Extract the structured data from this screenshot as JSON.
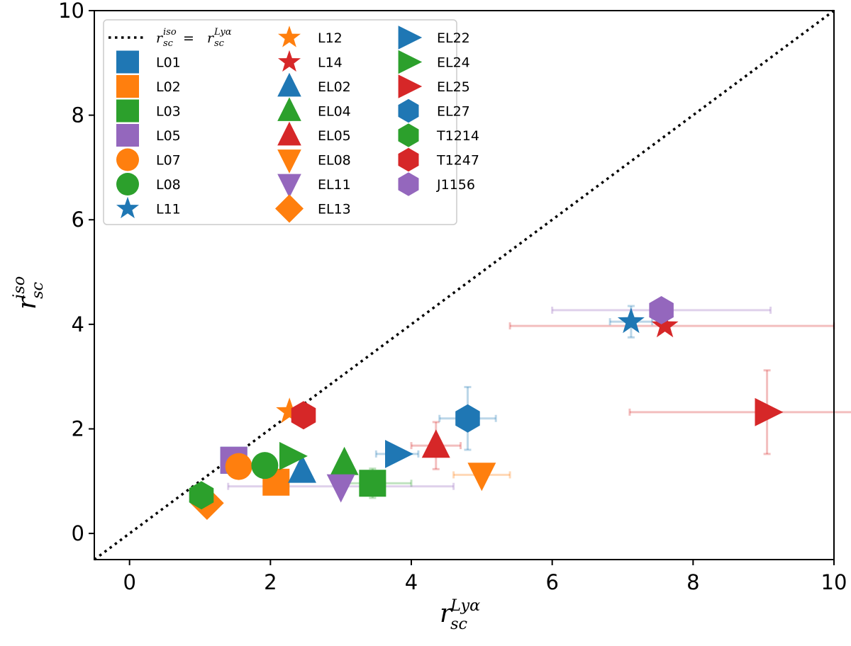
{
  "chart_data": {
    "type": "scatter",
    "xlim": [
      -0.5,
      10
    ],
    "ylim": [
      -0.5,
      10
    ],
    "xticks": [
      0,
      2,
      4,
      6,
      8,
      10
    ],
    "yticks": [
      0,
      2,
      4,
      6,
      8,
      10
    ],
    "xlabel": {
      "base": "r",
      "sub": "sc",
      "sup": "Lyα"
    },
    "ylabel": {
      "base": "r",
      "sub": "sc",
      "sup": "iso"
    },
    "reference_line": {
      "name": "r_sc^iso = r_sc^Lyα",
      "style": "dotted",
      "from": [
        -0.5,
        -0.5
      ],
      "to": [
        10,
        10
      ],
      "legend": {
        "lhs": "r",
        "lhs_sub": "sc",
        "lhs_sup": "iso",
        "eq": " = ",
        "rhs": "r",
        "rhs_sub": "sc",
        "rhs_sup": "Lyα"
      }
    },
    "legend_position": "top-left",
    "series": [
      {
        "name": "L01",
        "marker": "square",
        "color": "#1f77b4",
        "x": 1.48,
        "y": 1.4,
        "xerr": 0,
        "yerr": 0
      },
      {
        "name": "L02",
        "marker": "square",
        "color": "#ff7f0e",
        "x": 2.08,
        "y": 0.98,
        "xerr": 0,
        "yerr": 0
      },
      {
        "name": "L03",
        "marker": "square",
        "color": "#2ca02c",
        "x": 3.45,
        "y": 0.96,
        "xerr": 0.55,
        "yerr": 0.28
      },
      {
        "name": "L05",
        "marker": "square",
        "color": "#9467bd",
        "x": 1.48,
        "y": 1.4,
        "xerr": 0,
        "yerr": 0
      },
      {
        "name": "L07",
        "marker": "circle",
        "color": "#ff7f0e",
        "x": 1.55,
        "y": 1.28,
        "xerr": 0,
        "yerr": 0
      },
      {
        "name": "L08",
        "marker": "circle",
        "color": "#2ca02c",
        "x": 1.92,
        "y": 1.3,
        "xerr": 0,
        "yerr": 0
      },
      {
        "name": "L11",
        "marker": "star",
        "color": "#1f77b4",
        "x": 7.12,
        "y": 4.05,
        "xerr": 0.3,
        "yerr": 0.3
      },
      {
        "name": "L12",
        "marker": "star",
        "color": "#ff7f0e",
        "x": 2.27,
        "y": 2.33,
        "xerr": 0,
        "yerr": 0
      },
      {
        "name": "L14",
        "marker": "star",
        "color": "#d62728",
        "x": 7.6,
        "y": 3.97,
        "xerr": 0,
        "yerr": 0
      },
      {
        "name": "EL02",
        "marker": "triangle-up",
        "color": "#1f77b4",
        "x": 2.45,
        "y": 1.2,
        "xerr": 0,
        "yerr": 0
      },
      {
        "name": "EL04",
        "marker": "triangle-up",
        "color": "#2ca02c",
        "x": 3.05,
        "y": 1.35,
        "xerr": 0,
        "yerr": 0
      },
      {
        "name": "EL05",
        "marker": "triangle-up",
        "color": "#d62728",
        "x": 4.35,
        "y": 1.68,
        "xerr": 0.35,
        "yerr": 0.45
      },
      {
        "name": "EL08",
        "marker": "triangle-down",
        "color": "#ff7f0e",
        "x": 5.0,
        "y": 1.12,
        "xerr": 0.4,
        "yerr": 0
      },
      {
        "name": "EL11",
        "marker": "triangle-down",
        "color": "#9467bd",
        "x": 3.0,
        "y": 0.9,
        "xerr": 1.6,
        "yerr": 0
      },
      {
        "name": "EL13",
        "marker": "diamond",
        "color": "#ff7f0e",
        "x": 1.1,
        "y": 0.58,
        "xerr": 0,
        "yerr": 0
      },
      {
        "name": "EL22",
        "marker": "triangle-right",
        "color": "#1f77b4",
        "x": 3.8,
        "y": 1.52,
        "xerr": 0.3,
        "yerr": 0
      },
      {
        "name": "EL24",
        "marker": "triangle-right",
        "color": "#2ca02c",
        "x": 2.3,
        "y": 1.48,
        "xerr": 0,
        "yerr": 0
      },
      {
        "name": "EL25",
        "marker": "triangle-right",
        "color": "#d62728",
        "x": 9.05,
        "y": 2.32,
        "xerr": 1.95,
        "yerr": 0.8
      },
      {
        "name": "EL27",
        "marker": "hexagon",
        "color": "#1f77b4",
        "x": 4.8,
        "y": 2.2,
        "xerr": 0.4,
        "yerr": 0.6
      },
      {
        "name": "T1214",
        "marker": "hexagon",
        "color": "#2ca02c",
        "x": 1.02,
        "y": 0.73,
        "xerr": 0,
        "yerr": 0
      },
      {
        "name": "T1247",
        "marker": "hexagon",
        "color": "#d62728",
        "x": 2.47,
        "y": 2.26,
        "xerr": 0,
        "yerr": 0
      },
      {
        "name": "J1156",
        "marker": "hexagon",
        "color": "#9467bd",
        "x": 7.55,
        "y": 4.27,
        "xerr": 1.55,
        "yerr": 0
      }
    ],
    "extra_errorbars": [
      {
        "color": "#d62728",
        "x": 7.6,
        "y": 3.97,
        "xerr": 2.2,
        "xerr_plus": 2.4,
        "yerr": 0
      }
    ]
  }
}
